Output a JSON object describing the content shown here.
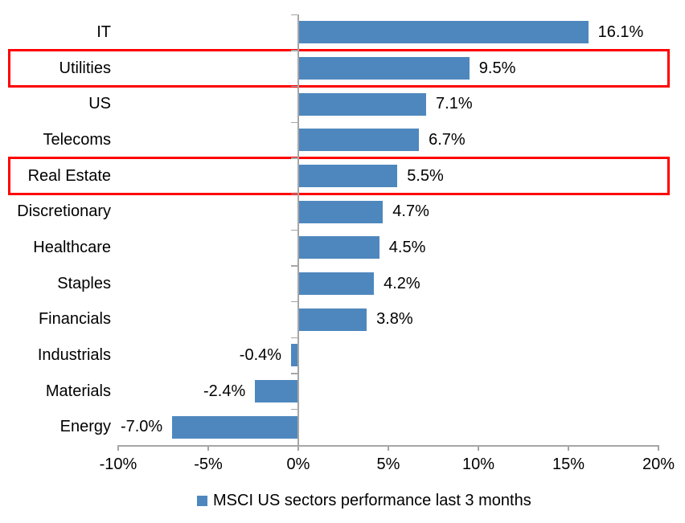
{
  "chart_data": {
    "type": "bar",
    "orientation": "horizontal",
    "title": "",
    "categories": [
      "IT",
      "Utilities",
      "US",
      "Telecoms",
      "Real Estate",
      "Discretionary",
      "Healthcare",
      "Staples",
      "Financials",
      "Industrials",
      "Materials",
      "Energy"
    ],
    "values": [
      16.1,
      9.5,
      7.1,
      6.7,
      5.5,
      4.7,
      4.5,
      4.2,
      3.8,
      -0.4,
      -2.4,
      -7.0
    ],
    "data_labels": [
      "16.1%",
      "9.5%",
      "7.1%",
      "6.7%",
      "5.5%",
      "4.7%",
      "4.5%",
      "4.2%",
      "3.8%",
      "-0.4%",
      "-2.4%",
      "-7.0%"
    ],
    "highlighted_categories": [
      "Utilities",
      "Real Estate"
    ],
    "x_axis": {
      "min": -10,
      "max": 20,
      "tick_values": [
        -10,
        -5,
        0,
        5,
        10,
        15,
        20
      ],
      "ticks": [
        "-10%",
        "-5%",
        "0%",
        "5%",
        "10%",
        "15%",
        "20%"
      ]
    },
    "grid": "off",
    "legend": {
      "position": "bottom",
      "label": "MSCI US sectors performance last 3 months"
    },
    "colors": {
      "bar": "#4E87BE",
      "highlight_box": "#FF0000",
      "axis": "#A6A6A6",
      "text": "#000000"
    }
  }
}
